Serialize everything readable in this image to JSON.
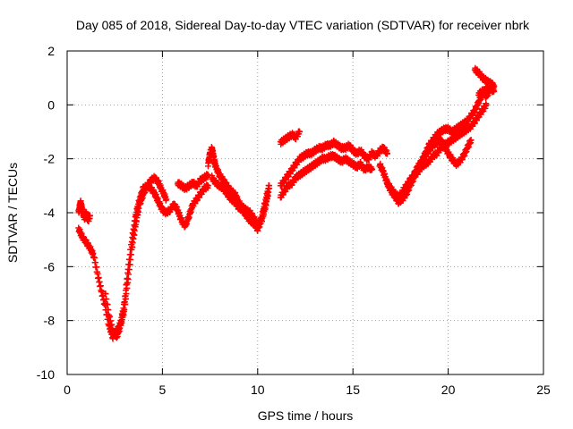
{
  "chart_data": {
    "type": "scatter",
    "title": "Day 085 of 2018, Sidereal Day-to-day VTEC variation (SDTVAR) for receiver nbrk",
    "xlabel": "GPS time / hours",
    "ylabel": "SDTVAR / TECUs",
    "xlim": [
      0,
      25
    ],
    "ylim": [
      -10,
      2
    ],
    "x_ticks": [
      0,
      5,
      10,
      15,
      20,
      25
    ],
    "y_ticks": [
      -10,
      -8,
      -6,
      -4,
      -2,
      0,
      2
    ],
    "x_tick_labels": [
      "0",
      "5",
      "10",
      "15",
      "20",
      "25"
    ],
    "y_tick_labels": [
      "-10",
      "-8",
      "-6",
      "-4",
      "-2",
      "0",
      "2"
    ],
    "grid": true,
    "marker": "+",
    "series": [
      {
        "color": "#ff0000",
        "segments": [
          {
            "x": [
              0.6,
              0.7,
              0.8,
              0.9,
              1.0,
              1.1,
              1.2
            ],
            "y": [
              -4.0,
              -3.6,
              -3.9,
              -4.2,
              -4.0,
              -4.3,
              -4.1
            ]
          },
          {
            "x": [
              0.6,
              0.8,
              1.0,
              1.2,
              1.4,
              1.6,
              1.8,
              2.0,
              2.2,
              2.4,
              2.6,
              2.8,
              3.0,
              3.2,
              3.4,
              3.6,
              3.8,
              4.0,
              4.2,
              4.4,
              4.6,
              4.8,
              5.0,
              5.2,
              5.4,
              5.6,
              5.8,
              6.0,
              6.2,
              6.4,
              6.6,
              6.8,
              7.0,
              7.2,
              7.4
            ],
            "y": [
              -4.6,
              -4.9,
              -5.1,
              -5.3,
              -5.6,
              -6.3,
              -6.9,
              -7.5,
              -8.2,
              -8.6,
              -8.4,
              -8.1,
              -7.4,
              -6.1,
              -5.0,
              -4.1,
              -3.5,
              -3.1,
              -3.0,
              -3.1,
              -3.3,
              -3.6,
              -3.9,
              -4.0,
              -3.9,
              -3.7,
              -3.9,
              -4.3,
              -4.5,
              -4.1,
              -3.7,
              -3.5,
              -3.3,
              -3.1,
              -3.0
            ]
          },
          {
            "x": [
              2.0,
              2.2,
              2.4,
              2.6,
              2.8,
              3.0,
              3.2,
              3.4,
              3.6,
              3.8,
              4.0,
              4.2,
              4.4,
              4.6,
              4.8,
              5.0,
              5.2
            ],
            "y": [
              -7.0,
              -7.8,
              -8.4,
              -8.6,
              -8.2,
              -7.6,
              -6.4,
              -5.3,
              -4.4,
              -3.7,
              -3.3,
              -3.0,
              -2.8,
              -2.7,
              -2.9,
              -3.2,
              -3.5
            ]
          },
          {
            "x": [
              5.8,
              6.0,
              6.2,
              6.4,
              6.6,
              6.8,
              7.0,
              7.2,
              7.4
            ],
            "y": [
              -2.9,
              -3.0,
              -3.1,
              -3.0,
              -2.9,
              -3.0,
              -2.8,
              -2.7,
              -2.6
            ]
          },
          {
            "x": [
              7.4,
              7.5,
              7.6,
              7.7,
              7.8,
              8.0,
              8.2,
              8.4,
              8.6,
              8.8,
              9.0,
              9.2,
              9.4,
              9.6,
              9.8,
              10.0,
              10.2,
              10.4,
              10.6
            ],
            "y": [
              -2.2,
              -1.8,
              -1.6,
              -2.0,
              -2.3,
              -2.6,
              -2.8,
              -3.0,
              -3.2,
              -3.3,
              -3.6,
              -3.8,
              -3.9,
              -4.0,
              -4.2,
              -4.5,
              -4.2,
              -3.6,
              -3.0
            ]
          },
          {
            "x": [
              7.6,
              7.8,
              8.0,
              8.2,
              8.4,
              8.6,
              8.8,
              9.0,
              9.2,
              9.4,
              9.6,
              9.8,
              10.0,
              10.2,
              10.4,
              10.6
            ],
            "y": [
              -2.7,
              -2.9,
              -3.0,
              -3.1,
              -3.3,
              -3.5,
              -3.6,
              -3.8,
              -3.9,
              -4.1,
              -4.3,
              -4.4,
              -4.6,
              -4.3,
              -3.8,
              -3.1
            ]
          },
          {
            "x": [
              11.2,
              11.4,
              11.6,
              11.8,
              12.0,
              12.2
            ],
            "y": [
              -1.4,
              -1.3,
              -1.2,
              -1.1,
              -1.2,
              -1.0
            ]
          },
          {
            "x": [
              11.2,
              11.4,
              11.6,
              11.8,
              12.0,
              12.2,
              12.4,
              12.6,
              12.8,
              13.0,
              13.2,
              13.4,
              13.6,
              13.8,
              14.0,
              14.2,
              14.4,
              14.6,
              14.8,
              15.0,
              15.2,
              15.4,
              15.6,
              15.8,
              16.0,
              16.2,
              16.4,
              16.6,
              16.8
            ],
            "y": [
              -3.0,
              -2.8,
              -2.6,
              -2.4,
              -2.2,
              -2.0,
              -1.9,
              -1.8,
              -1.8,
              -1.7,
              -1.6,
              -1.6,
              -1.5,
              -1.5,
              -1.4,
              -1.5,
              -1.6,
              -1.6,
              -1.5,
              -1.7,
              -1.8,
              -1.7,
              -1.9,
              -2.0,
              -1.8,
              -1.9,
              -1.7,
              -1.6,
              -1.8
            ]
          },
          {
            "x": [
              11.2,
              11.4,
              11.6,
              11.8,
              12.0,
              12.2,
              12.4,
              12.6,
              12.8,
              13.0,
              13.2,
              13.4,
              13.6,
              13.8,
              14.0,
              14.2,
              14.4,
              14.6,
              14.8,
              15.0,
              15.2,
              15.4,
              15.6,
              15.8,
              16.0
            ],
            "y": [
              -3.4,
              -3.2,
              -3.0,
              -2.9,
              -2.7,
              -2.6,
              -2.5,
              -2.4,
              -2.3,
              -2.2,
              -2.1,
              -2.0,
              -2.0,
              -1.9,
              -1.9,
              -2.0,
              -2.1,
              -2.0,
              -2.1,
              -2.2,
              -2.3,
              -2.2,
              -2.4,
              -2.3,
              -2.4
            ]
          },
          {
            "x": [
              16.4,
              16.6,
              16.8,
              17.0,
              17.2,
              17.4,
              17.6,
              17.8,
              18.0,
              18.2,
              18.4,
              18.6,
              18.8,
              19.0,
              19.2,
              19.4,
              19.6,
              19.8,
              20.0,
              20.2,
              20.4,
              20.6,
              20.8,
              21.0,
              21.2,
              21.4,
              21.6,
              21.8,
              22.0,
              22.2,
              22.4
            ],
            "y": [
              -2.2,
              -2.5,
              -2.9,
              -3.2,
              -3.4,
              -3.6,
              -3.5,
              -3.3,
              -3.0,
              -2.7,
              -2.4,
              -2.1,
              -1.8,
              -1.5,
              -1.3,
              -1.1,
              -1.0,
              -0.9,
              -0.9,
              -1.0,
              -0.9,
              -0.8,
              -0.7,
              -0.6,
              -0.4,
              -0.2,
              0.1,
              0.4,
              0.6,
              0.8,
              0.7
            ]
          },
          {
            "x": [
              16.8,
              17.0,
              17.2,
              17.4,
              17.6,
              17.8,
              18.0,
              18.2,
              18.4,
              18.6,
              18.8,
              19.0,
              19.2,
              19.4,
              19.6,
              19.8,
              20.0,
              20.2,
              20.4,
              20.6,
              20.8,
              21.0,
              21.2
            ],
            "y": [
              -2.9,
              -3.1,
              -3.3,
              -3.4,
              -3.3,
              -3.1,
              -2.8,
              -2.6,
              -2.3,
              -2.1,
              -1.9,
              -1.7,
              -1.5,
              -1.4,
              -1.3,
              -1.5,
              -1.8,
              -2.0,
              -2.2,
              -2.1,
              -1.9,
              -1.6,
              -1.3
            ]
          },
          {
            "x": [
              17.6,
              17.8,
              18.0,
              18.2,
              18.4,
              18.6,
              18.8,
              19.0,
              19.2,
              19.4,
              19.6,
              19.8,
              20.0,
              20.2,
              20.4,
              20.6,
              20.8,
              21.0,
              21.2,
              21.4,
              21.6,
              21.8,
              22.0
            ],
            "y": [
              -3.2,
              -3.0,
              -2.8,
              -2.6,
              -2.5,
              -2.3,
              -2.2,
              -2.1,
              -1.9,
              -1.8,
              -1.6,
              -1.5,
              -1.4,
              -1.3,
              -1.2,
              -1.1,
              -1.0,
              -0.9,
              -0.8,
              -0.6,
              -0.4,
              -0.2,
              0.0
            ]
          },
          {
            "x": [
              21.4,
              21.6,
              21.8,
              22.0,
              22.2,
              22.4
            ],
            "y": [
              1.3,
              1.2,
              1.0,
              0.9,
              0.8,
              0.7
            ]
          },
          {
            "x": [
              21.6,
              21.8,
              22.0,
              22.2,
              22.4
            ],
            "y": [
              0.4,
              0.5,
              0.3,
              0.6,
              0.5
            ]
          }
        ]
      }
    ]
  }
}
